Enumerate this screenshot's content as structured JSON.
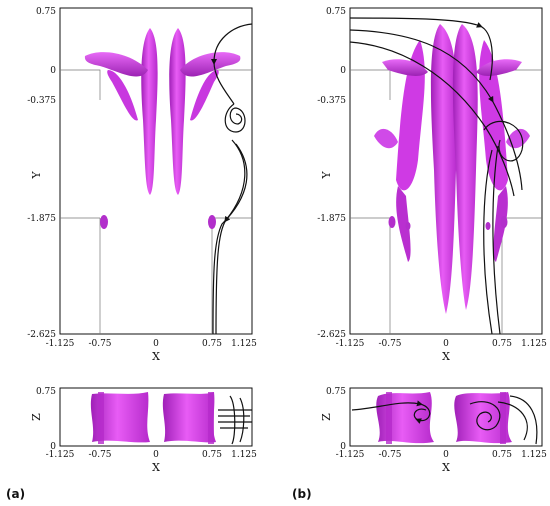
{
  "figure": {
    "panels": [
      {
        "label": "(a)",
        "top": {
          "xlabel": "X",
          "ylabel": "Y",
          "xticks": [
            "-1.125",
            "-0.75",
            "0",
            "0.75",
            "1.125"
          ],
          "yticks": [
            "0.75",
            "0",
            "-0.375",
            "-1.875",
            "-2.625"
          ]
        },
        "bottom": {
          "xlabel": "X",
          "ylabel": "Z",
          "xticks": [
            "-1.125",
            "-0.75",
            "0",
            "0.75",
            "1.125"
          ],
          "yticks": [
            "0.75",
            "0"
          ]
        }
      },
      {
        "label": "(b)",
        "top": {
          "xlabel": "X",
          "ylabel": "Y",
          "xticks": [
            "-1.125",
            "-0.75",
            "0",
            "0.75",
            "1.125"
          ],
          "yticks": [
            "0.75",
            "0",
            "-0.375",
            "-1.875",
            "-2.625"
          ]
        },
        "bottom": {
          "xlabel": "X",
          "ylabel": "Z",
          "xticks": [
            "-1.125",
            "-0.75",
            "0",
            "0.75",
            "1.125"
          ],
          "yticks": [
            "0.75",
            "0"
          ]
        }
      }
    ],
    "colors": {
      "isosurface": "#d633e8",
      "isosurface_dark": "#9b1fb0",
      "streamline": "#111111"
    }
  }
}
